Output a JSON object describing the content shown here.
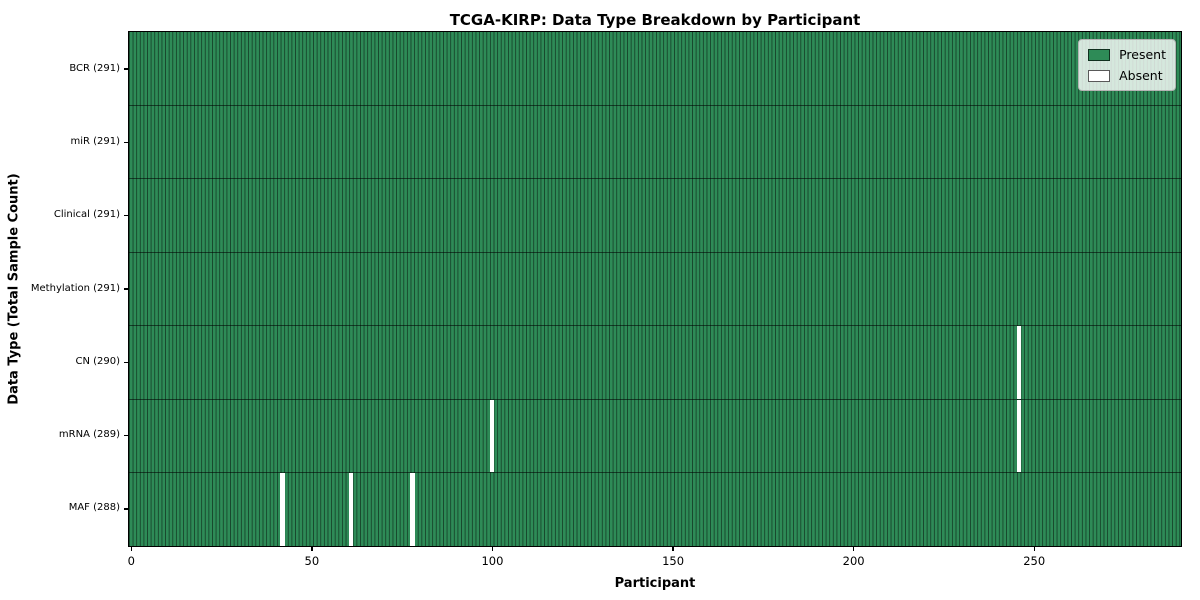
{
  "chart_data": {
    "type": "heatmap",
    "title": "TCGA-KIRP: Data Type Breakdown by Participant",
    "xlabel": "Participant",
    "ylabel": "Data Type (Total Sample Count)",
    "n_participants": 291,
    "xlim": [
      -0.5,
      290.5
    ],
    "x_ticks": [
      0,
      50,
      100,
      150,
      200,
      250
    ],
    "grid": false,
    "legend_position": "upper right",
    "legend": [
      {
        "label": "Present",
        "color": "#2e8b57"
      },
      {
        "label": "Absent",
        "color": "#ffffff"
      }
    ],
    "colors": {
      "present": "#2e8b57",
      "absent": "#ffffff"
    },
    "rows": [
      {
        "label": "BCR (291)",
        "data_type": "BCR",
        "total": 291,
        "absent_participants": []
      },
      {
        "label": "miR (291)",
        "data_type": "miR",
        "total": 291,
        "absent_participants": []
      },
      {
        "label": "Clinical (291)",
        "data_type": "Clinical",
        "total": 291,
        "absent_participants": []
      },
      {
        "label": "Methylation (291)",
        "data_type": "Methylation",
        "total": 291,
        "absent_participants": []
      },
      {
        "label": "CN (290)",
        "data_type": "CN",
        "total": 290,
        "absent_participants": [
          246
        ]
      },
      {
        "label": "mRNA (289)",
        "data_type": "mRNA",
        "total": 289,
        "absent_participants": [
          100,
          246
        ]
      },
      {
        "label": "MAF (288)",
        "data_type": "MAF",
        "total": 288,
        "absent_participants": [
          42,
          61,
          78
        ]
      }
    ]
  }
}
